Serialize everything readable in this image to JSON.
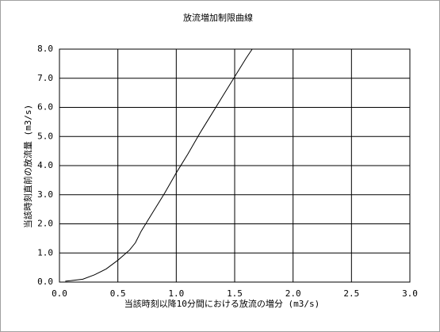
{
  "chart_data": {
    "type": "line",
    "title": "放流増加制限曲線",
    "x_label": "当該時刻以降10分間における放流の増分 (m3/s)",
    "y_label": "当該時刻直前の放流量 (m3/s)",
    "x": [
      0.05,
      0.1,
      0.2,
      0.3,
      0.4,
      0.5,
      0.6,
      0.65,
      0.7,
      0.8,
      0.9,
      1.0,
      1.1,
      1.2,
      1.3,
      1.4,
      1.5,
      1.6,
      1.65
    ],
    "series": [
      {
        "color": "#000000",
        "values": [
          0.03,
          0.05,
          0.1,
          0.25,
          0.45,
          0.75,
          1.1,
          1.35,
          1.75,
          2.4,
          3.05,
          3.75,
          4.4,
          5.1,
          5.75,
          6.4,
          7.05,
          7.7,
          8.0
        ]
      }
    ],
    "xlim": [
      0,
      3
    ],
    "ylim": [
      0,
      8
    ],
    "xticks": [
      {
        "value": 0,
        "label": "0.0"
      },
      {
        "value": 0.5,
        "label": "0.5"
      },
      {
        "value": 1,
        "label": "1.0"
      },
      {
        "value": 1.5,
        "label": "1.5"
      },
      {
        "value": 2,
        "label": "2.0"
      },
      {
        "value": 2.5,
        "label": "2.5"
      },
      {
        "value": 3,
        "label": "3.0"
      }
    ],
    "yticks": [
      {
        "value": 0,
        "label": "0.0"
      },
      {
        "value": 1,
        "label": "1.0"
      },
      {
        "value": 2,
        "label": "2.0"
      },
      {
        "value": 3,
        "label": "3.0"
      },
      {
        "value": 4,
        "label": "4.0"
      },
      {
        "value": 5,
        "label": "5.0"
      },
      {
        "value": 6,
        "label": "6.0"
      },
      {
        "value": 7,
        "label": "7.0"
      },
      {
        "value": 8,
        "label": "8.0"
      }
    ],
    "grid": true
  }
}
